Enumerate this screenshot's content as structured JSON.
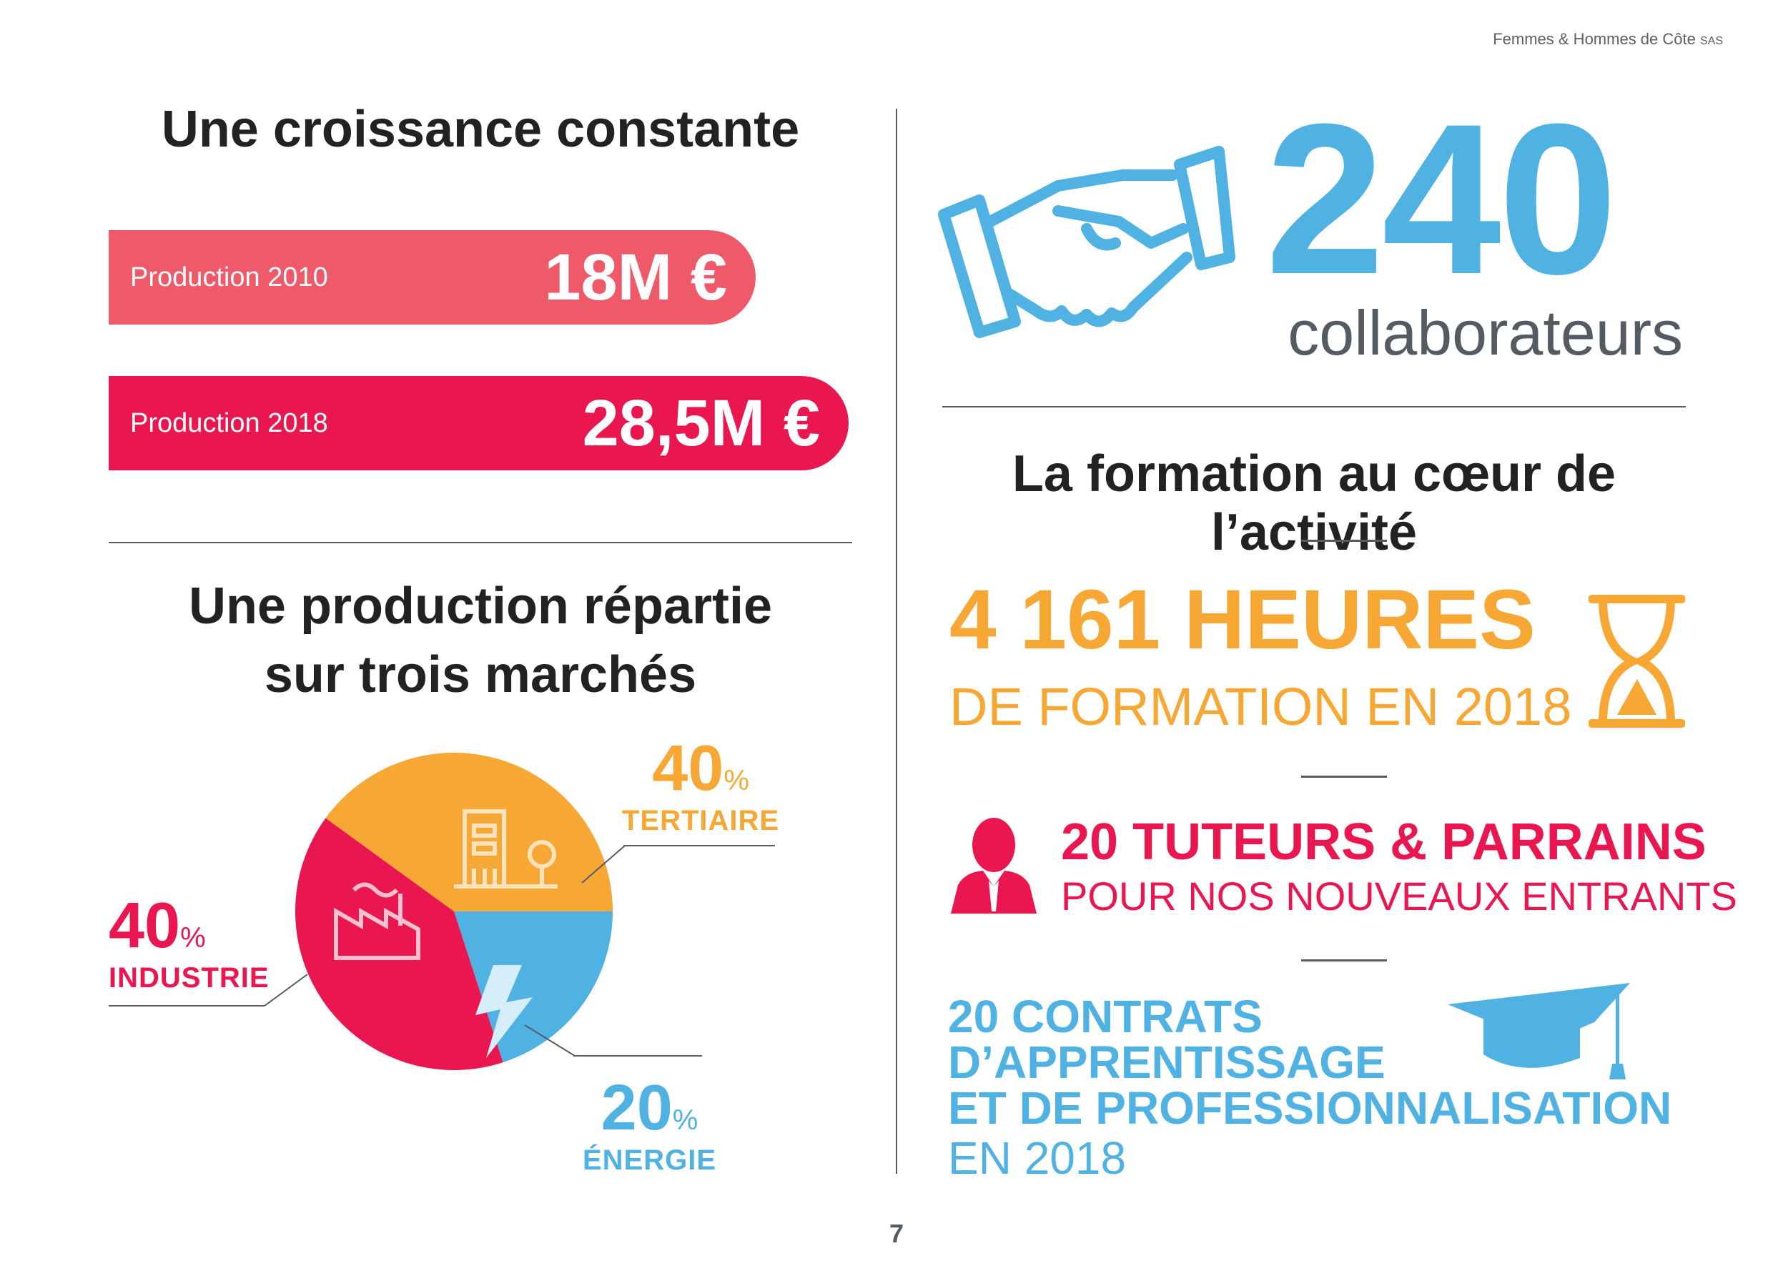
{
  "header": {
    "company": "Femmes & Hommes de Côte",
    "suffix": "SAS"
  },
  "left": {
    "growth_title": "Une croissance constante",
    "bars": [
      {
        "label": "Production 2010",
        "value": "18M €"
      },
      {
        "label": "Production 2018",
        "value": "28,5M €"
      }
    ],
    "markets_title_line1": "Une production répartie",
    "markets_title_line2": "sur trois marchés",
    "markets": {
      "tertiaire": {
        "pct": "40",
        "unit": "%",
        "label": "TERTIAIRE"
      },
      "industrie": {
        "pct": "40",
        "unit": "%",
        "label": "INDUSTRIE"
      },
      "energie": {
        "pct": "20",
        "unit": "%",
        "label": "ÉNERGIE"
      }
    }
  },
  "right": {
    "staff_count": "240",
    "staff_label": "collaborateurs",
    "training_title": "La formation au cœur de l’activité",
    "hours_line1": "4 161 HEURES",
    "hours_line2": "DE FORMATION EN 2018",
    "tutors_line1": "20 TUTEURS & PARRAINS",
    "tutors_line2": "POUR NOS NOUVEAUX ENTRANTS",
    "contracts_line1": "20 CONTRATS",
    "contracts_line2": "D’APPRENTISSAGE",
    "contracts_line3": "ET DE PROFESSIONNALISATION",
    "contracts_line4": "EN 2018"
  },
  "footer": {
    "page_number": "7"
  },
  "colors": {
    "coral": "#ef5a6a",
    "pink": "#e91650",
    "orange": "#f7a734",
    "blue": "#4fb2e3",
    "gray": "#555b63"
  },
  "chart_data": {
    "type": "pie",
    "categories": [
      "TERTIAIRE",
      "ÉNERGIE",
      "INDUSTRIE"
    ],
    "values": [
      40,
      20,
      40
    ],
    "colors": [
      "#f7a734",
      "#4fb2e3",
      "#e91650"
    ]
  }
}
